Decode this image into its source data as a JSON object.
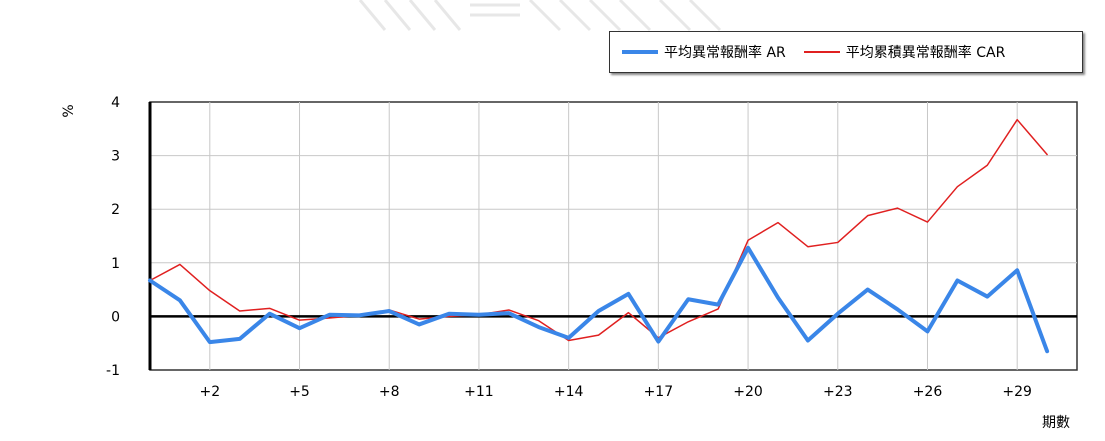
{
  "chart_data": {
    "type": "line",
    "title": "",
    "xlabel": "期數",
    "ylabel": "%",
    "x": [
      0,
      1,
      2,
      3,
      4,
      5,
      6,
      7,
      8,
      9,
      10,
      11,
      12,
      13,
      14,
      15,
      16,
      17,
      18,
      19,
      20,
      21,
      22,
      23,
      24,
      25,
      26,
      27,
      28,
      29,
      30
    ],
    "xticks": [
      2,
      5,
      8,
      11,
      14,
      17,
      20,
      23,
      26,
      29
    ],
    "xtick_labels": [
      "+2",
      "+5",
      "+8",
      "+11",
      "+14",
      "+17",
      "+20",
      "+23",
      "+26",
      "+29"
    ],
    "xlim": [
      0,
      31
    ],
    "ylim": [
      -1,
      4
    ],
    "yticks": [
      -1,
      0,
      1,
      2,
      3,
      4
    ],
    "ytick_labels": [
      "-1",
      "0",
      "1",
      "2",
      "3",
      "4"
    ],
    "grid": true,
    "legend_position": "top-right",
    "series": [
      {
        "name": "平均異常報酬率 AR",
        "color": "#3a86e8",
        "values": [
          0.67,
          0.3,
          -0.48,
          -0.42,
          0.05,
          -0.22,
          0.03,
          0.02,
          0.1,
          -0.15,
          0.05,
          0.03,
          0.06,
          -0.2,
          -0.4,
          0.1,
          0.42,
          -0.47,
          0.32,
          0.22,
          1.28,
          0.35,
          -0.45,
          0.05,
          0.5,
          0.13,
          -0.28,
          0.67,
          0.37,
          0.86,
          -0.65
        ]
      },
      {
        "name": "平均累積異常報酬率 CAR",
        "color": "#e02020",
        "values": [
          0.67,
          0.97,
          0.48,
          0.1,
          0.15,
          -0.07,
          -0.03,
          0.02,
          0.12,
          -0.05,
          0.0,
          0.03,
          0.12,
          -0.08,
          -0.45,
          -0.35,
          0.07,
          -0.4,
          -0.1,
          0.14,
          1.42,
          1.75,
          1.3,
          1.38,
          1.88,
          2.02,
          1.76,
          2.42,
          2.82,
          3.67,
          3.02
        ]
      }
    ]
  }
}
